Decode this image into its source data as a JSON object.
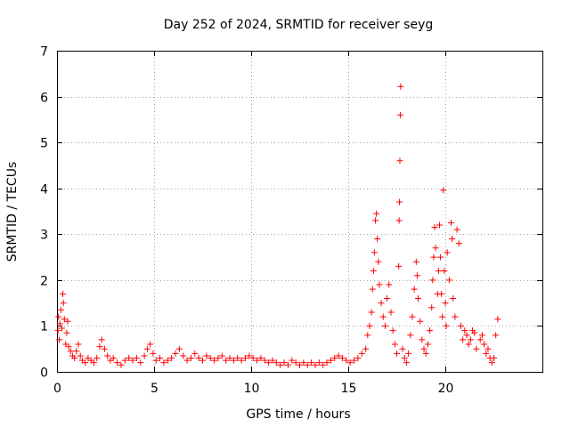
{
  "chart_data": {
    "type": "scatter",
    "title": "Day 252 of 2024, SRMTID for receiver seyg",
    "xlabel": "GPS time / hours",
    "ylabel": "SRMTID / TECUs",
    "xlim": [
      0,
      25
    ],
    "ylim": [
      0,
      7
    ],
    "xticks": [
      0,
      5,
      10,
      15,
      20
    ],
    "yticks": [
      0,
      1,
      2,
      3,
      4,
      5,
      6,
      7
    ],
    "grid": true,
    "marker": "+",
    "color": "#ff0000",
    "series": [
      {
        "name": "SRMTID",
        "points": [
          [
            0.05,
            0.9
          ],
          [
            0.08,
            1.2
          ],
          [
            0.12,
            0.7
          ],
          [
            0.15,
            1.05
          ],
          [
            0.2,
            1.35
          ],
          [
            0.25,
            0.95
          ],
          [
            0.3,
            1.7
          ],
          [
            0.33,
            1.5
          ],
          [
            0.38,
            1.15
          ],
          [
            0.45,
            0.6
          ],
          [
            0.5,
            0.85
          ],
          [
            0.55,
            1.1
          ],
          [
            0.6,
            0.55
          ],
          [
            0.7,
            0.45
          ],
          [
            0.8,
            0.35
          ],
          [
            0.9,
            0.3
          ],
          [
            1.0,
            0.45
          ],
          [
            1.1,
            0.6
          ],
          [
            1.2,
            0.35
          ],
          [
            1.3,
            0.25
          ],
          [
            1.45,
            0.2
          ],
          [
            1.6,
            0.3
          ],
          [
            1.75,
            0.25
          ],
          [
            1.9,
            0.2
          ],
          [
            2.05,
            0.3
          ],
          [
            2.2,
            0.55
          ],
          [
            2.3,
            0.7
          ],
          [
            2.45,
            0.5
          ],
          [
            2.6,
            0.35
          ],
          [
            2.75,
            0.25
          ],
          [
            2.9,
            0.3
          ],
          [
            3.1,
            0.2
          ],
          [
            3.3,
            0.15
          ],
          [
            3.5,
            0.25
          ],
          [
            3.7,
            0.3
          ],
          [
            3.9,
            0.25
          ],
          [
            4.1,
            0.3
          ],
          [
            4.3,
            0.2
          ],
          [
            4.5,
            0.35
          ],
          [
            4.65,
            0.5
          ],
          [
            4.8,
            0.6
          ],
          [
            4.95,
            0.4
          ],
          [
            5.1,
            0.25
          ],
          [
            5.3,
            0.3
          ],
          [
            5.5,
            0.2
          ],
          [
            5.7,
            0.25
          ],
          [
            5.9,
            0.3
          ],
          [
            6.1,
            0.4
          ],
          [
            6.3,
            0.5
          ],
          [
            6.5,
            0.35
          ],
          [
            6.7,
            0.25
          ],
          [
            6.9,
            0.3
          ],
          [
            7.1,
            0.4
          ],
          [
            7.3,
            0.3
          ],
          [
            7.5,
            0.25
          ],
          [
            7.7,
            0.35
          ],
          [
            7.9,
            0.3
          ],
          [
            8.1,
            0.25
          ],
          [
            8.3,
            0.3
          ],
          [
            8.5,
            0.35
          ],
          [
            8.7,
            0.25
          ],
          [
            8.9,
            0.3
          ],
          [
            9.1,
            0.25
          ],
          [
            9.3,
            0.3
          ],
          [
            9.5,
            0.25
          ],
          [
            9.7,
            0.3
          ],
          [
            9.9,
            0.35
          ],
          [
            10.1,
            0.3
          ],
          [
            10.3,
            0.25
          ],
          [
            10.5,
            0.3
          ],
          [
            10.7,
            0.25
          ],
          [
            10.9,
            0.2
          ],
          [
            11.1,
            0.25
          ],
          [
            11.3,
            0.2
          ],
          [
            11.5,
            0.15
          ],
          [
            11.7,
            0.2
          ],
          [
            11.9,
            0.15
          ],
          [
            12.1,
            0.25
          ],
          [
            12.3,
            0.2
          ],
          [
            12.5,
            0.15
          ],
          [
            12.7,
            0.2
          ],
          [
            12.9,
            0.15
          ],
          [
            13.1,
            0.2
          ],
          [
            13.3,
            0.15
          ],
          [
            13.5,
            0.2
          ],
          [
            13.7,
            0.15
          ],
          [
            13.9,
            0.2
          ],
          [
            14.1,
            0.25
          ],
          [
            14.3,
            0.3
          ],
          [
            14.5,
            0.35
          ],
          [
            14.7,
            0.3
          ],
          [
            14.9,
            0.25
          ],
          [
            15.1,
            0.2
          ],
          [
            15.3,
            0.25
          ],
          [
            15.5,
            0.3
          ],
          [
            15.7,
            0.4
          ],
          [
            15.9,
            0.5
          ],
          [
            16.0,
            0.8
          ],
          [
            16.1,
            1.0
          ],
          [
            16.2,
            1.3
          ],
          [
            16.25,
            1.8
          ],
          [
            16.3,
            2.2
          ],
          [
            16.35,
            2.6
          ],
          [
            16.4,
            3.3
          ],
          [
            16.45,
            3.45
          ],
          [
            16.5,
            2.9
          ],
          [
            16.55,
            2.4
          ],
          [
            16.6,
            1.9
          ],
          [
            16.7,
            1.5
          ],
          [
            16.8,
            1.2
          ],
          [
            16.9,
            1.0
          ],
          [
            17.0,
            1.6
          ],
          [
            17.1,
            1.9
          ],
          [
            17.2,
            1.3
          ],
          [
            17.3,
            0.9
          ],
          [
            17.4,
            0.6
          ],
          [
            17.5,
            0.4
          ],
          [
            17.6,
            2.3
          ],
          [
            17.62,
            3.3
          ],
          [
            17.64,
            3.7
          ],
          [
            17.66,
            4.6
          ],
          [
            17.68,
            5.6
          ],
          [
            17.7,
            6.22
          ],
          [
            17.8,
            0.5
          ],
          [
            17.9,
            0.3
          ],
          [
            18.0,
            0.2
          ],
          [
            18.1,
            0.4
          ],
          [
            18.2,
            0.8
          ],
          [
            18.3,
            1.2
          ],
          [
            18.4,
            1.8
          ],
          [
            18.5,
            2.4
          ],
          [
            18.55,
            2.1
          ],
          [
            18.6,
            1.6
          ],
          [
            18.7,
            1.1
          ],
          [
            18.8,
            0.7
          ],
          [
            18.9,
            0.5
          ],
          [
            19.0,
            0.4
          ],
          [
            19.1,
            0.6
          ],
          [
            19.2,
            0.9
          ],
          [
            19.3,
            1.4
          ],
          [
            19.35,
            2.0
          ],
          [
            19.4,
            2.5
          ],
          [
            19.45,
            3.15
          ],
          [
            19.5,
            2.7
          ],
          [
            19.6,
            1.7
          ],
          [
            19.65,
            2.2
          ],
          [
            19.7,
            3.2
          ],
          [
            19.75,
            2.5
          ],
          [
            19.8,
            1.7
          ],
          [
            19.85,
            1.2
          ],
          [
            19.9,
            3.96
          ],
          [
            19.95,
            2.2
          ],
          [
            20.0,
            1.5
          ],
          [
            20.05,
            1.0
          ],
          [
            20.1,
            2.6
          ],
          [
            20.2,
            2.0
          ],
          [
            20.3,
            3.25
          ],
          [
            20.35,
            2.9
          ],
          [
            20.4,
            1.6
          ],
          [
            20.5,
            1.2
          ],
          [
            20.6,
            3.1
          ],
          [
            20.7,
            2.8
          ],
          [
            20.8,
            1.0
          ],
          [
            20.9,
            0.7
          ],
          [
            21.0,
            0.9
          ],
          [
            21.1,
            0.8
          ],
          [
            21.2,
            0.6
          ],
          [
            21.3,
            0.7
          ],
          [
            21.4,
            0.9
          ],
          [
            21.5,
            0.85
          ],
          [
            21.6,
            0.5
          ],
          [
            21.8,
            0.7
          ],
          [
            21.9,
            0.8
          ],
          [
            22.0,
            0.6
          ],
          [
            22.1,
            0.4
          ],
          [
            22.2,
            0.5
          ],
          [
            22.3,
            0.3
          ],
          [
            22.4,
            0.2
          ],
          [
            22.5,
            0.3
          ],
          [
            22.6,
            0.8
          ],
          [
            22.7,
            1.15
          ]
        ]
      }
    ]
  }
}
